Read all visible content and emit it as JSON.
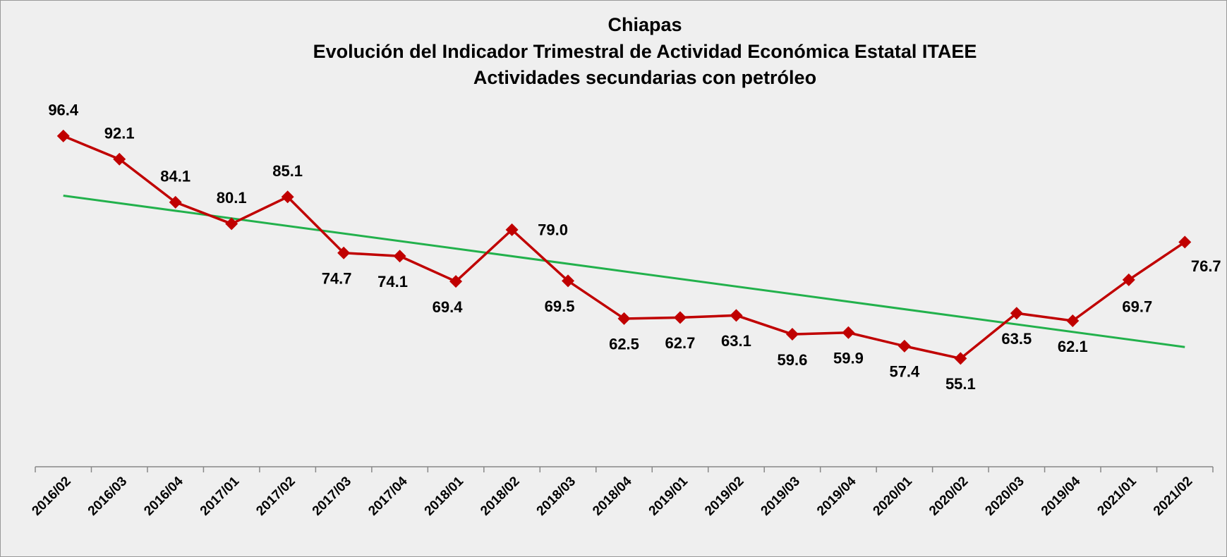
{
  "chart_data": {
    "type": "line",
    "title": [
      "Chiapas",
      "Evolución del Indicador Trimestral de Actividad Económica Estatal ITAEE",
      "Actividades secundarias con petróleo"
    ],
    "categories": [
      "2016/02",
      "2016/03",
      "2016/04",
      "2017/01",
      "2017/02",
      "2017/03",
      "2017/04",
      "2018/01",
      "2018/02",
      "2018/03",
      "2018/04",
      "2019/01",
      "2019/02",
      "2019/03",
      "2019/04",
      "2020/01",
      "2020/02",
      "2020/03",
      "2019/04",
      "2021/01",
      "2021/02"
    ],
    "values": [
      96.4,
      92.1,
      84.1,
      80.1,
      85.1,
      74.7,
      74.1,
      69.4,
      79.0,
      69.5,
      62.5,
      62.7,
      63.1,
      59.6,
      59.9,
      57.4,
      55.1,
      63.5,
      62.1,
      69.7,
      76.7
    ],
    "value_labels": [
      "96.4",
      "92.1",
      "84.1",
      "80.1",
      "85.1",
      "74.7",
      "74.1",
      "69.4",
      "79.0",
      "69.5",
      "62.5",
      "62.7",
      "63.1",
      "59.6",
      "59.9",
      "57.4",
      "55.1",
      "63.5",
      "62.1",
      "69.7",
      "76.7"
    ],
    "color": "#c00000",
    "trendline": true,
    "trend_color": "#22b14c",
    "ylim": [
      35,
      110
    ]
  }
}
